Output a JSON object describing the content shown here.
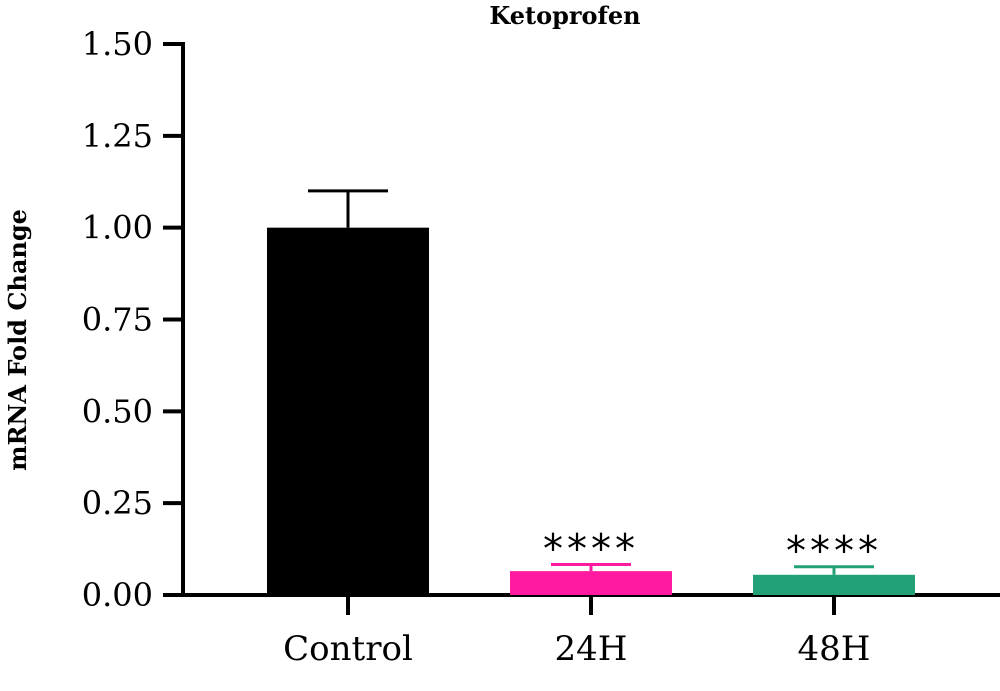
{
  "chart_data": {
    "type": "bar",
    "title": "Ketoprofen",
    "xlabel": "",
    "ylabel": "mRNA Fold Change",
    "categories": [
      "Control",
      "24H",
      "48H"
    ],
    "values": [
      1.0,
      0.065,
      0.055
    ],
    "error_upper": [
      0.1,
      0.018,
      0.022
    ],
    "significance": [
      "",
      "****",
      "****"
    ],
    "colors": [
      "#000000",
      "#ff1aa0",
      "#22a078"
    ],
    "ylim": [
      0,
      1.5
    ],
    "yticks": [
      "0.00",
      "0.25",
      "0.50",
      "0.75",
      "1.00",
      "1.25",
      "1.50"
    ],
    "ytick_values": [
      0,
      0.25,
      0.5,
      0.75,
      1.0,
      1.25,
      1.5
    ],
    "grid": false
  }
}
